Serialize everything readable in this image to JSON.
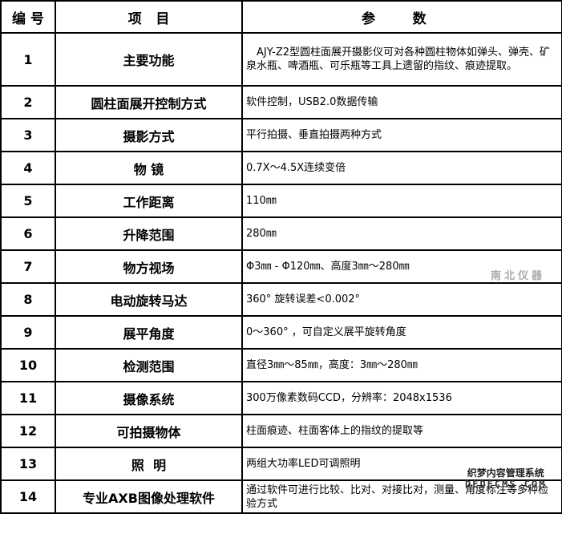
{
  "header": {
    "number": "编 号",
    "item": "项   目",
    "params": "参 数"
  },
  "rows": [
    {
      "number": "1",
      "item": "主要功能",
      "param": "　AJY-Z2型圆柱面展开摄影仪可对各种圆柱物体如弹头、弹壳、矿泉水瓶、啤酒瓶、可乐瓶等工具上遗留的指纹、痕迹提取。"
    },
    {
      "number": "2",
      "item": "圆柱面展开控制方式",
      "param": "软件控制，USB2.0数据传输"
    },
    {
      "number": "3",
      "item": "摄影方式",
      "param": "平行拍摄、垂直拍摄两种方式"
    },
    {
      "number": "4",
      "item": "物 镜",
      "param": "0.7X～4.5X连续变倍"
    },
    {
      "number": "5",
      "item": "工作距离",
      "param": "110㎜"
    },
    {
      "number": "6",
      "item": "升降范围",
      "param": "280㎜"
    },
    {
      "number": "7",
      "item": "物方视场",
      "param": "Φ3㎜ - Φ120㎜、高度3㎜～280㎜"
    },
    {
      "number": "8",
      "item": "电动旋转马达",
      "param": "360° 旋转误差<0.002°"
    },
    {
      "number": "9",
      "item": "展平角度",
      "param": "0～360° ，可自定义展平旋转角度"
    },
    {
      "number": "10",
      "item": "检测范围",
      "param": "直径3㎜～85㎜，高度：3㎜～280㎜"
    },
    {
      "number": "11",
      "item": "摄像系统",
      "param": "300万像素数码CCD，分辨率：2048x1536"
    },
    {
      "number": "12",
      "item": "可拍摄物体",
      "param": "柱面痕迹、柱面客体上的指纹的提取等"
    },
    {
      "number": "13",
      "item": "照  明",
      "param": "两组大功率LED可调照明"
    },
    {
      "number": "14",
      "item": "专业AXB图像处理软件",
      "param": "通过软件可进行比较、比对、对接比对，测量、角度标注等多种检验方式"
    }
  ],
  "watermarks": {
    "center": "南北仪器",
    "corner_line1": "织梦内容管理系统",
    "corner_line2": "DEDECMS.COM"
  }
}
